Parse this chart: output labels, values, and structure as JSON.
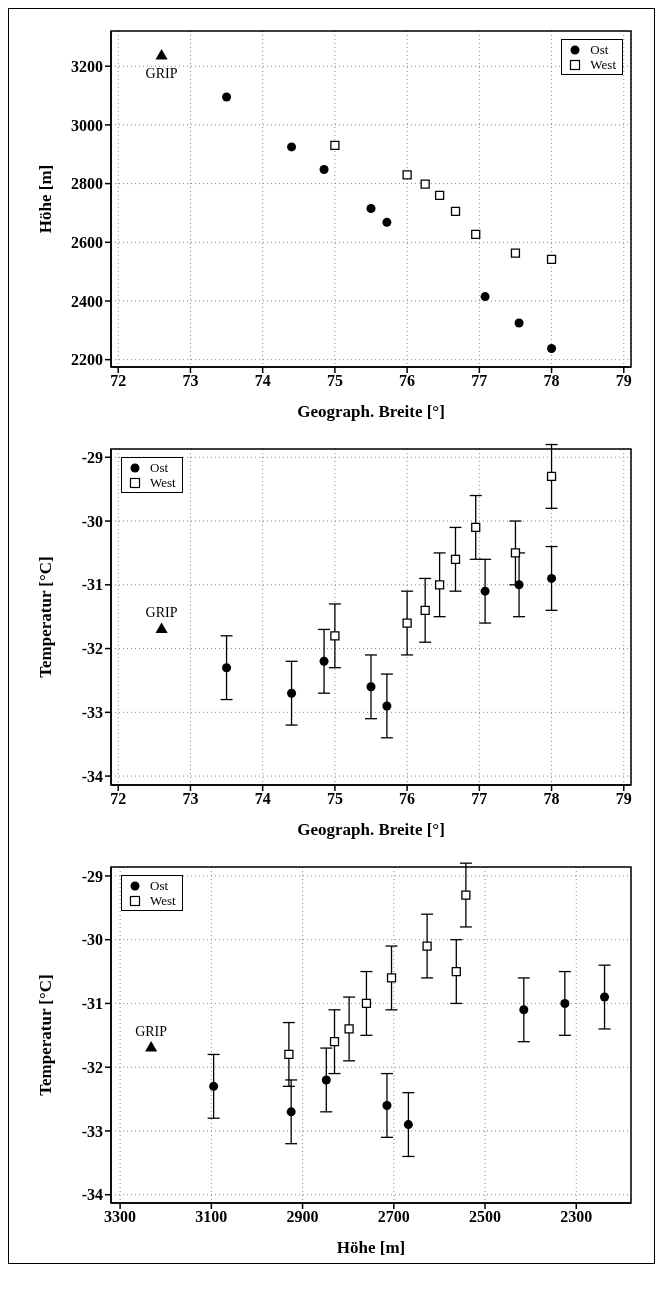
{
  "chart_data": [
    {
      "type": "scatter",
      "xlabel": "Geograph. Breite [°]",
      "ylabel": "Höhe [m]",
      "xlim": [
        71.9,
        79.1
      ],
      "ylim": [
        2175,
        3320
      ],
      "xticks": [
        72,
        73,
        74,
        75,
        76,
        77,
        78,
        79
      ],
      "yticks": [
        2200,
        2400,
        2600,
        2800,
        3000,
        3200
      ],
      "grid": true,
      "legend": "top right",
      "series": [
        {
          "name": "Ost",
          "color": "#000000",
          "marker": "circle",
          "x": [
            73.5,
            74.4,
            74.85,
            75.5,
            75.72,
            77.08,
            77.55,
            78.0
          ],
          "values": [
            3095,
            2925,
            2848,
            2715,
            2668,
            2415,
            2325,
            2238
          ]
        },
        {
          "name": "West",
          "color": "#000000",
          "marker": "square",
          "x": [
            75.0,
            76.0,
            76.25,
            76.45,
            76.67,
            76.95,
            77.5,
            78.0
          ],
          "values": [
            2930,
            2830,
            2798,
            2760,
            2705,
            2627,
            2563,
            2542
          ]
        },
        {
          "name": "GRIP",
          "color": "#000000",
          "marker": "triangle",
          "x": [
            72.6
          ],
          "values": [
            3235
          ]
        }
      ]
    },
    {
      "type": "scatter",
      "xlabel": "Geograph. Breite [°]",
      "ylabel": "Temperatur [°C]",
      "xlim": [
        71.9,
        79.1
      ],
      "ylim": [
        -34.14,
        -28.87
      ],
      "xticks": [
        72,
        73,
        74,
        75,
        76,
        77,
        78,
        79
      ],
      "yticks": [
        -34,
        -33,
        -32,
        -31,
        -30,
        -29
      ],
      "grid": true,
      "legend": "top left",
      "series": [
        {
          "name": "Ost",
          "color": "#000000",
          "marker": "circle",
          "x": [
            73.5,
            74.4,
            74.85,
            75.5,
            75.72,
            77.08,
            77.55,
            78.0
          ],
          "values": [
            -32.3,
            -32.7,
            -32.2,
            -32.6,
            -32.9,
            -31.1,
            -31.0,
            -30.9
          ],
          "errors": [
            0.5,
            0.5,
            0.5,
            0.5,
            0.5,
            0.5,
            0.5,
            0.5
          ]
        },
        {
          "name": "West",
          "color": "#000000",
          "marker": "square",
          "x": [
            75.0,
            76.0,
            76.25,
            76.45,
            76.67,
            76.95,
            77.5,
            78.0
          ],
          "values": [
            -31.8,
            -31.6,
            -31.4,
            -31.0,
            -30.6,
            -30.1,
            -30.5,
            -29.3
          ],
          "errors": [
            0.5,
            0.5,
            0.5,
            0.5,
            0.5,
            0.5,
            0.5,
            0.5
          ]
        },
        {
          "name": "GRIP",
          "color": "#000000",
          "marker": "triangle",
          "x": [
            72.6
          ],
          "values": [
            -31.7
          ]
        }
      ]
    },
    {
      "type": "scatter",
      "xlabel": "Höhe [m]",
      "ylabel": "Temperatur [°C]",
      "xlim": [
        3320,
        2180
      ],
      "ylim": [
        -34.13,
        -28.86
      ],
      "xticks": [
        3300,
        3100,
        2900,
        2700,
        2500,
        2300
      ],
      "yticks": [
        -34,
        -33,
        -32,
        -31,
        -30,
        -29
      ],
      "grid": true,
      "legend": "top left",
      "series": [
        {
          "name": "Ost",
          "color": "#000000",
          "marker": "circle",
          "x": [
            3095,
            2925,
            2848,
            2715,
            2668,
            2415,
            2325,
            2238
          ],
          "values": [
            -32.3,
            -32.7,
            -32.2,
            -32.6,
            -32.9,
            -31.1,
            -31.0,
            -30.9
          ],
          "errors": [
            0.5,
            0.5,
            0.5,
            0.5,
            0.5,
            0.5,
            0.5,
            0.5
          ]
        },
        {
          "name": "West",
          "color": "#000000",
          "marker": "square",
          "x": [
            2930,
            2830,
            2798,
            2760,
            2705,
            2627,
            2563,
            2542
          ],
          "values": [
            -31.8,
            -31.6,
            -31.4,
            -31.0,
            -30.6,
            -30.1,
            -30.5,
            -29.3
          ],
          "errors": [
            0.5,
            0.5,
            0.5,
            0.5,
            0.5,
            0.5,
            0.5,
            0.5
          ]
        },
        {
          "name": "GRIP",
          "color": "#000000",
          "marker": "triangle",
          "x": [
            3232
          ],
          "values": [
            -31.7
          ]
        }
      ]
    }
  ]
}
